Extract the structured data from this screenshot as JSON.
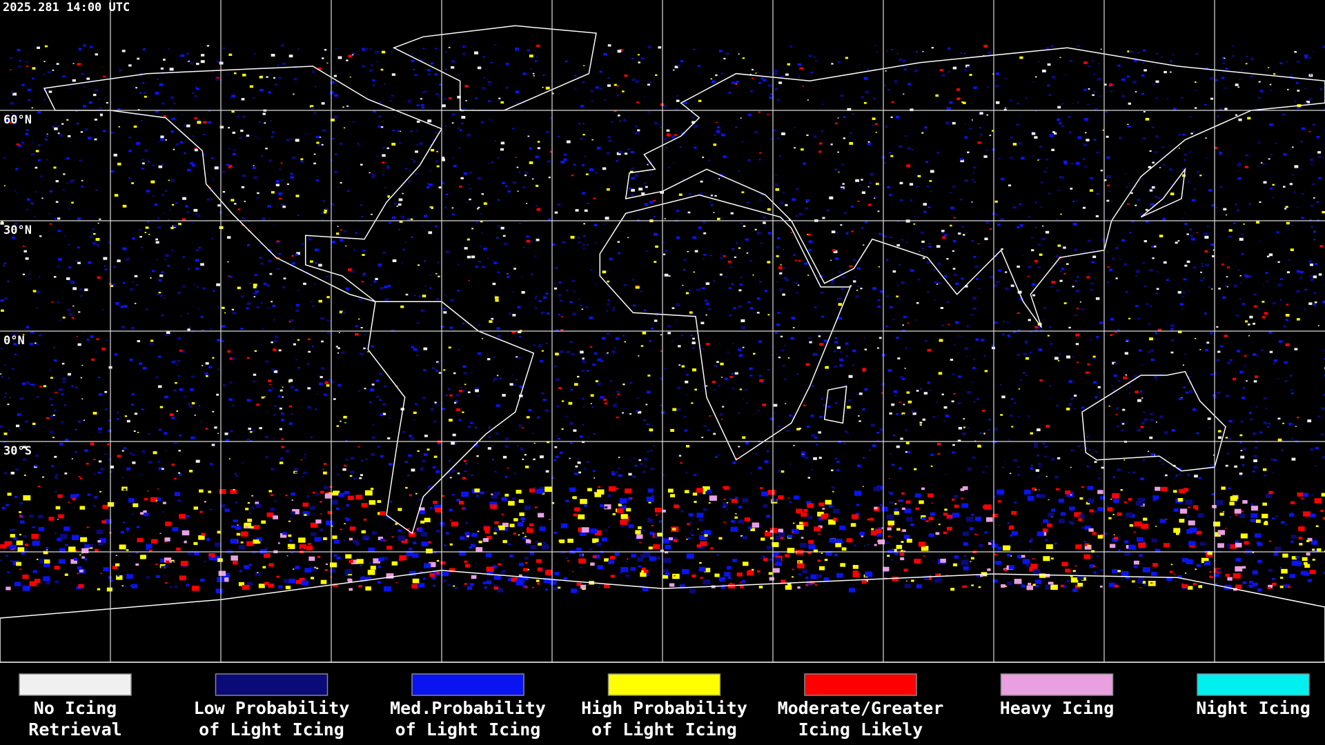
{
  "timestamp": "2025.281 14:00 UTC",
  "latitude_labels": [
    "60°N",
    "30°N",
    "0°N",
    "30°S"
  ],
  "legend": [
    {
      "color": "#f0f0f0",
      "lines": [
        "No Icing",
        "Retrieval"
      ]
    },
    {
      "color": "#0a0a78",
      "lines": [
        "Low Probability",
        "of Light Icing"
      ]
    },
    {
      "color": "#0a14f0",
      "lines": [
        "Med.Probability",
        "of Light Icing"
      ]
    },
    {
      "color": "#ffff00",
      "lines": [
        "High Probability",
        "of Light Icing"
      ]
    },
    {
      "color": "#ff0000",
      "lines": [
        "Moderate/Greater",
        "Icing Likely"
      ]
    },
    {
      "color": "#e8a0e0",
      "lines": [
        "Heavy Icing"
      ]
    },
    {
      "color": "#00f0f0",
      "lines": [
        "Night Icing"
      ]
    }
  ]
}
